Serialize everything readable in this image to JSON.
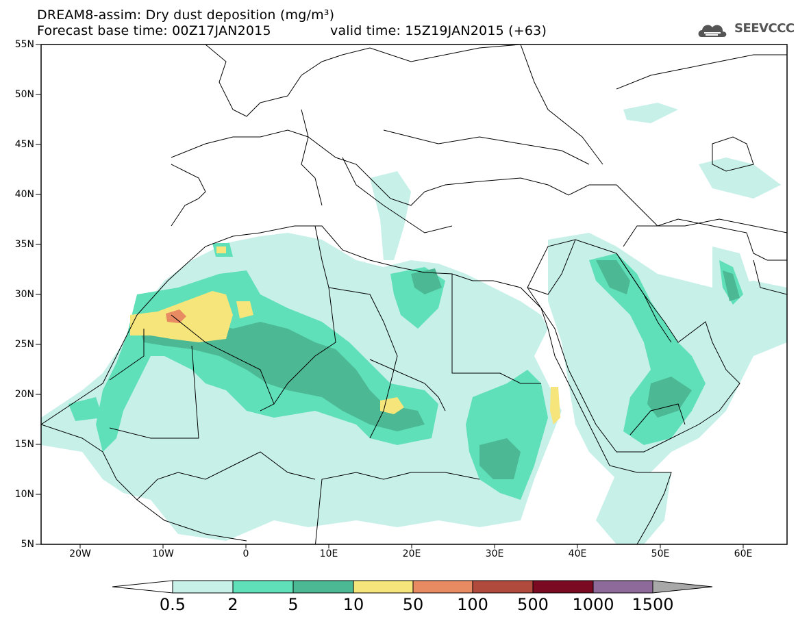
{
  "title_line1": "DREAM8-assim: Dry dust deposition (mg/m³)",
  "title_line2a": "Forecast base time: 00Z17JAN2015",
  "title_line2b": "valid time: 15Z19JAN2015 (+63)",
  "logo_text": "SEEVCCC",
  "lat_labels": [
    "55N",
    "50N",
    "45N",
    "40N",
    "35N",
    "30N",
    "25N",
    "20N",
    "15N",
    "10N",
    "5N"
  ],
  "lon_labels": [
    "20W",
    "10W",
    "0",
    "10E",
    "20E",
    "30E",
    "40E",
    "50E",
    "60E"
  ],
  "colorbar": {
    "labels": [
      "0.5",
      "2",
      "5",
      "10",
      "50",
      "100",
      "500",
      "1000",
      "1500"
    ],
    "colors": [
      "#c6f0e8",
      "#5fe0b8",
      "#4cb894",
      "#f5e57a",
      "#e88a62",
      "#b04a3c",
      "#7a0a22",
      "#8e6a9a",
      "#a8a8a8"
    ]
  },
  "colors": {
    "land_line": "#000000",
    "low": "#c6f0e8",
    "mid": "#5fe0b8",
    "high": "#4cb894",
    "yellow": "#f5e57a",
    "orange": "#e88a62"
  }
}
